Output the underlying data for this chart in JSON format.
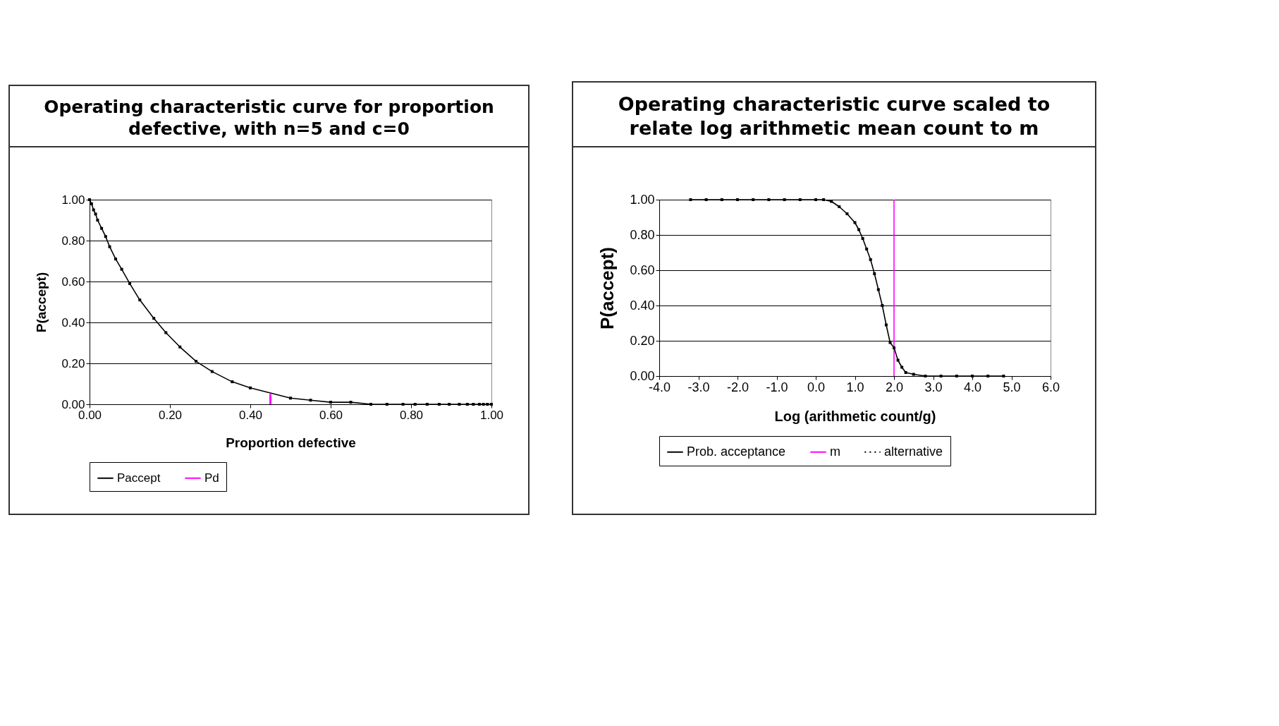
{
  "chart_data": [
    {
      "type": "line",
      "title": "Operating characteristic curve for proportion defective, with n=5 and c=0",
      "xlabel": "Proportion defective",
      "ylabel": "P(accept)",
      "xlim": [
        0,
        1
      ],
      "ylim": [
        0,
        1
      ],
      "xticks": [
        {
          "value": 0,
          "label": "0.00"
        },
        {
          "value": 0.2,
          "label": "0.20"
        },
        {
          "value": 0.4,
          "label": "0.40"
        },
        {
          "value": 0.6,
          "label": "0.60"
        },
        {
          "value": 0.8,
          "label": "0.80"
        },
        {
          "value": 1,
          "label": "1.00"
        }
      ],
      "yticks": [
        {
          "value": 0,
          "label": "0.00"
        },
        {
          "value": 0.2,
          "label": "0.20"
        },
        {
          "value": 0.4,
          "label": "0.40"
        },
        {
          "value": 0.6,
          "label": "0.60"
        },
        {
          "value": 0.8,
          "label": "0.80"
        },
        {
          "value": 1,
          "label": "1.00"
        }
      ],
      "grid": "y",
      "legend": "bottom",
      "marker": "square",
      "series": [
        {
          "name": "Paccept",
          "color": "#000000",
          "x": [
            0,
            0.005,
            0.01,
            0.015,
            0.02,
            0.03,
            0.04,
            0.05,
            0.065,
            0.08,
            0.1,
            0.125,
            0.16,
            0.19,
            0.225,
            0.265,
            0.305,
            0.355,
            0.4,
            0.5,
            0.55,
            0.6,
            0.65,
            0.7,
            0.74,
            0.78,
            0.81,
            0.84,
            0.87,
            0.895,
            0.92,
            0.94,
            0.955,
            0.97,
            0.98,
            0.99,
            1
          ],
          "values": [
            1,
            0.98,
            0.95,
            0.93,
            0.9,
            0.86,
            0.82,
            0.77,
            0.71,
            0.66,
            0.59,
            0.51,
            0.42,
            0.35,
            0.28,
            0.21,
            0.16,
            0.11,
            0.08,
            0.03,
            0.02,
            0.01,
            0.01,
            0,
            0,
            0,
            0,
            0,
            0,
            0,
            0,
            0,
            0,
            0,
            0,
            0,
            0
          ]
        },
        {
          "name": "Pd",
          "color": "#ff00ff",
          "marker": "none",
          "x": [
            0.45,
            0.45
          ],
          "values": [
            0,
            0.05
          ]
        }
      ]
    },
    {
      "type": "line",
      "title": "Operating characteristic curve scaled to relate log arithmetic mean count to m",
      "xlabel": "Log (arithmetic count/g)",
      "ylabel": "P(accept)",
      "xlim": [
        -4,
        6
      ],
      "ylim": [
        0,
        1
      ],
      "xticks": [
        {
          "value": -4,
          "label": "-4.0"
        },
        {
          "value": -3,
          "label": "-3.0"
        },
        {
          "value": -2,
          "label": "-2.0"
        },
        {
          "value": -1,
          "label": "-1.0"
        },
        {
          "value": 0,
          "label": "0.0"
        },
        {
          "value": 1,
          "label": "1.0"
        },
        {
          "value": 2,
          "label": "2.0"
        },
        {
          "value": 3,
          "label": "3.0"
        },
        {
          "value": 4,
          "label": "4.0"
        },
        {
          "value": 5,
          "label": "5.0"
        },
        {
          "value": 6,
          "label": "6.0"
        }
      ],
      "yticks": [
        {
          "value": 0,
          "label": "0.00"
        },
        {
          "value": 0.2,
          "label": "0.20"
        },
        {
          "value": 0.4,
          "label": "0.40"
        },
        {
          "value": 0.6,
          "label": "0.60"
        },
        {
          "value": 0.8,
          "label": "0.80"
        },
        {
          "value": 1,
          "label": "1.00"
        }
      ],
      "grid": "y",
      "legend": "bottom",
      "marker": "square",
      "series": [
        {
          "name": "Prob. acceptance",
          "color": "#000000",
          "x": [
            -3.2,
            -2.8,
            -2.4,
            -2,
            -1.6,
            -1.2,
            -0.8,
            -0.4,
            0,
            0.2,
            0.4,
            0.6,
            0.8,
            1,
            1.1,
            1.2,
            1.3,
            1.4,
            1.5,
            1.6,
            1.7,
            1.8,
            1.9,
            2,
            2.1,
            2.2,
            2.3,
            2.5,
            2.8,
            3.2,
            3.6,
            4,
            4.4,
            4.8
          ],
          "values": [
            1,
            1,
            1,
            1,
            1,
            1,
            1,
            1,
            1,
            1,
            0.99,
            0.96,
            0.92,
            0.87,
            0.83,
            0.78,
            0.72,
            0.66,
            0.58,
            0.49,
            0.4,
            0.29,
            0.19,
            0.16,
            0.09,
            0.05,
            0.02,
            0.01,
            0,
            0,
            0,
            0,
            0,
            0
          ]
        },
        {
          "name": "m",
          "color": "#ff00ff",
          "marker": "none",
          "x": [
            2,
            2
          ],
          "values": [
            0,
            1
          ]
        },
        {
          "name": "alternative",
          "color": "#000000",
          "marker": "none",
          "line_style": "dotted",
          "values": [
            null
          ]
        }
      ]
    }
  ]
}
